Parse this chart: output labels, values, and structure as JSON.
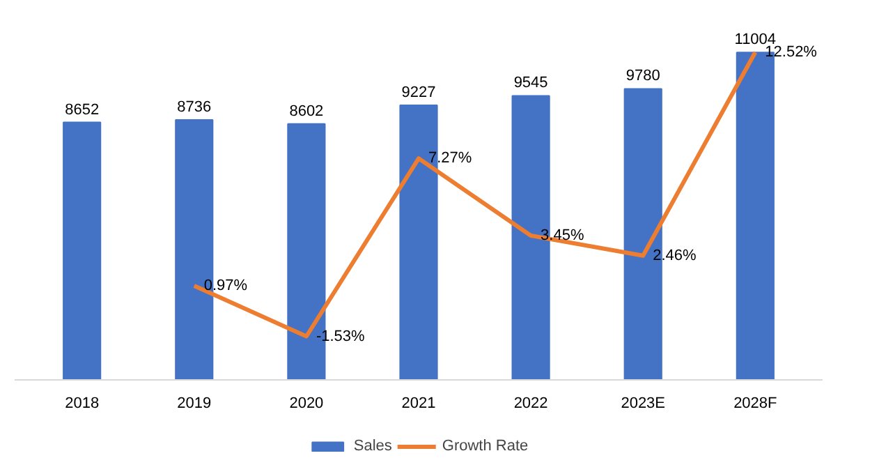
{
  "chart_data": {
    "type": "bar",
    "categories": [
      "2018",
      "2019",
      "2020",
      "2021",
      "2022",
      "2023E",
      "2028F"
    ],
    "series": [
      {
        "name": "Sales",
        "color": "#4472c4",
        "values": [
          8652,
          8736,
          8602,
          9227,
          9545,
          9780,
          11004
        ]
      },
      {
        "name": "Growth Rate",
        "type": "line",
        "axis": "y2",
        "color": "#ed7d31",
        "values": [
          null,
          0.97,
          -1.53,
          7.27,
          3.45,
          2.46,
          12.52
        ],
        "value_labels": [
          null,
          "0.97%",
          "-1.53%",
          "7.27%",
          "3.45%",
          "2.46%",
          "12.52%"
        ]
      }
    ],
    "data_labels": true,
    "tick_labels": "x",
    "legend": "bottom",
    "line_style": "solid"
  }
}
